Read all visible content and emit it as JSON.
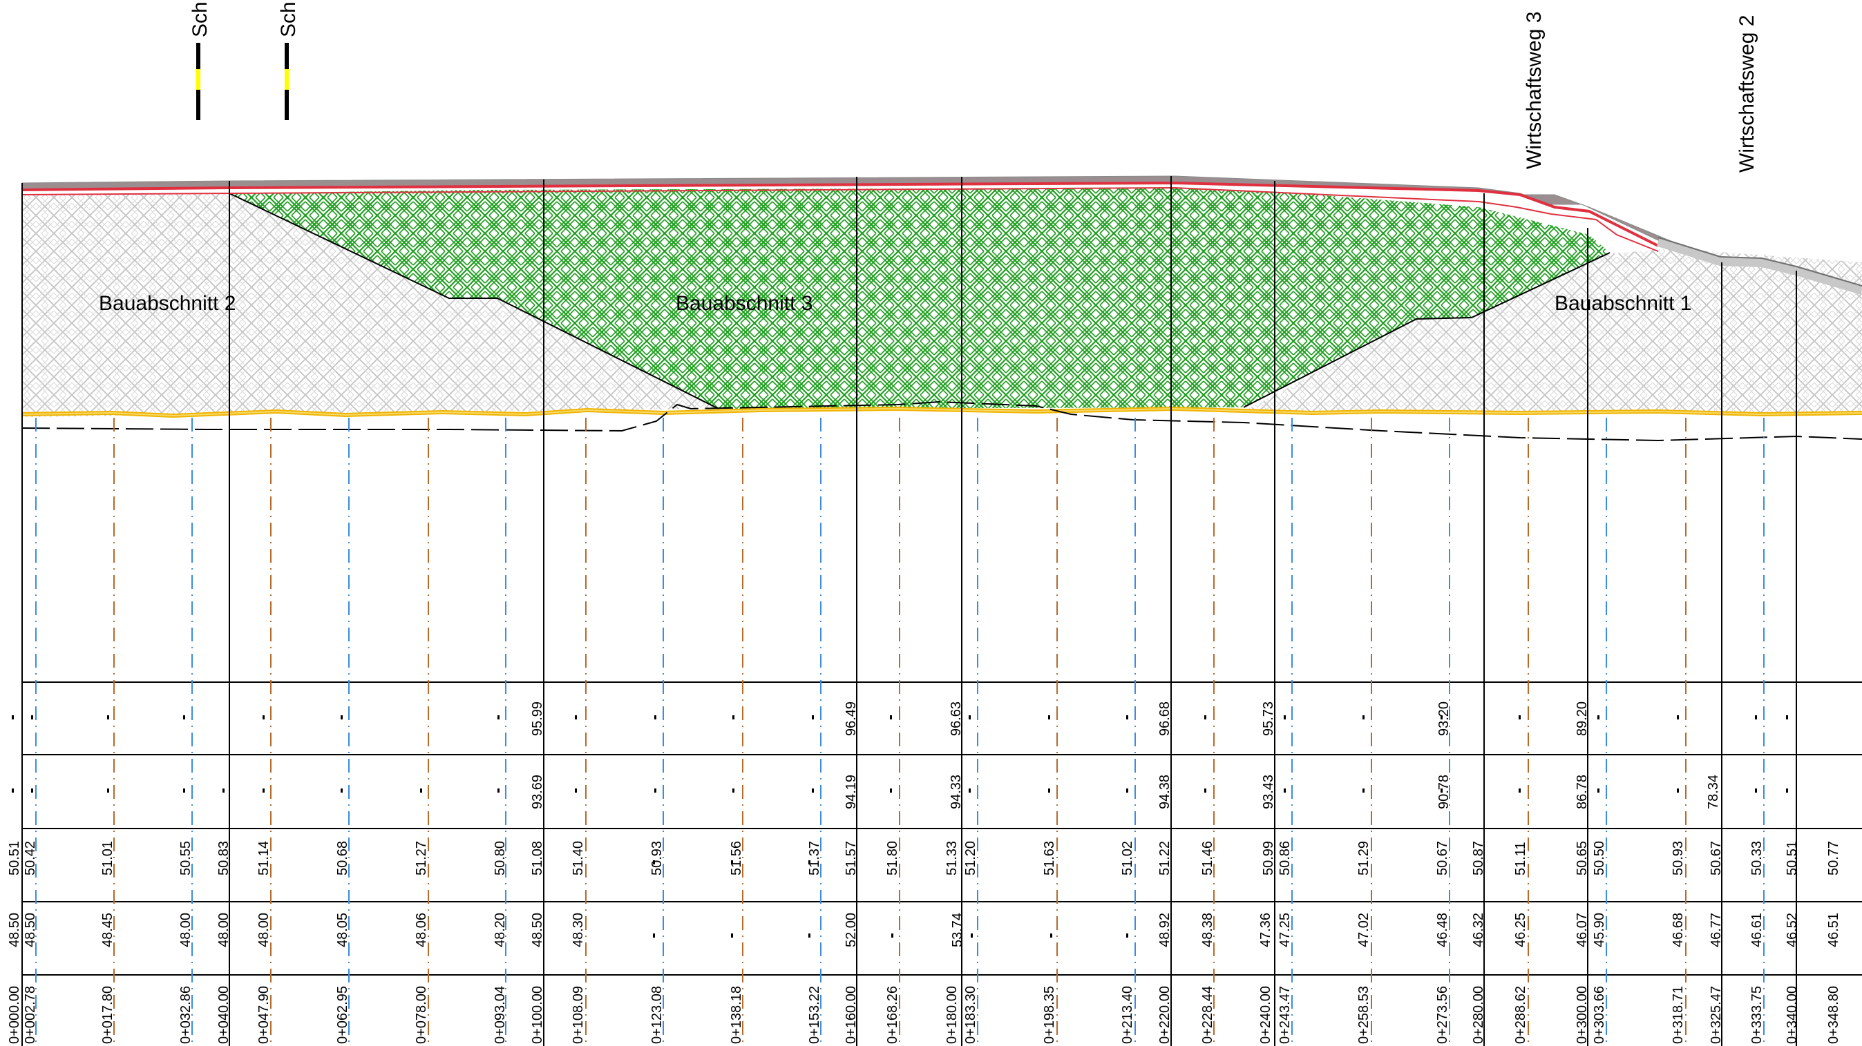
{
  "sections": [
    {
      "label": "Bauabschnitt 2"
    },
    {
      "label": "Bauabschnitt 3"
    },
    {
      "label": "Bauabschnitt 1"
    }
  ],
  "road_labels": [
    {
      "label": "Sch"
    },
    {
      "label": "Sch"
    },
    {
      "label": "Wirtschaftsweg 3"
    },
    {
      "label": "Wirtschaftsweg 2"
    }
  ],
  "band_rows": {
    "row1": [
      {
        "text": "95.99"
      },
      {
        "text": "96.49"
      },
      {
        "text": "96.63"
      },
      {
        "text": "96.68"
      },
      {
        "text": "95.73"
      },
      {
        "text": "93.20"
      },
      {
        "text": "89.20"
      }
    ],
    "row2": [
      {
        "text": "93.69"
      },
      {
        "text": "94.19"
      },
      {
        "text": "94.33"
      },
      {
        "text": "94.38"
      },
      {
        "text": "93.43"
      },
      {
        "text": "90.78"
      },
      {
        "text": "86.78"
      },
      {
        "text": "78.34"
      }
    ],
    "row3": [
      {
        "text": "50.51"
      },
      {
        "text": "50.42"
      },
      {
        "text": "51.01"
      },
      {
        "text": "50.55"
      },
      {
        "text": "50.83"
      },
      {
        "text": "51.14"
      },
      {
        "text": "50.68"
      },
      {
        "text": "51.27"
      },
      {
        "text": "50.80"
      },
      {
        "text": "51.08"
      },
      {
        "text": "51.40"
      },
      {
        "text": "50.93"
      },
      {
        "text": "51.56"
      },
      {
        "text": "51.37"
      },
      {
        "text": "51.57"
      },
      {
        "text": "51.80"
      },
      {
        "text": "51.33"
      },
      {
        "text": "51.20"
      },
      {
        "text": "51.63"
      },
      {
        "text": "51.02"
      },
      {
        "text": "51.22"
      },
      {
        "text": "51.46"
      },
      {
        "text": "50.99"
      },
      {
        "text": "50.86"
      },
      {
        "text": "51.29"
      },
      {
        "text": "50.67"
      },
      {
        "text": "50.87"
      },
      {
        "text": "51.11"
      },
      {
        "text": "50.65"
      },
      {
        "text": "50.50"
      },
      {
        "text": "50.93"
      },
      {
        "text": "50.67"
      },
      {
        "text": "50.33"
      },
      {
        "text": "50.51"
      },
      {
        "text": "50.77"
      }
    ],
    "row4": [
      {
        "text": "48.50"
      },
      {
        "text": "48.50"
      },
      {
        "text": "48.45"
      },
      {
        "text": "48.00"
      },
      {
        "text": "48.00"
      },
      {
        "text": "48.00"
      },
      {
        "text": "48.05"
      },
      {
        "text": "48.06"
      },
      {
        "text": "48.20"
      },
      {
        "text": "48.50"
      },
      {
        "text": "48.30"
      },
      {
        "text": "52.00"
      },
      {
        "text": "53.74"
      },
      {
        "text": "48.92"
      },
      {
        "text": "48.38"
      },
      {
        "text": "47.36"
      },
      {
        "text": "47.25"
      },
      {
        "text": "47.02"
      },
      {
        "text": "46.48"
      },
      {
        "text": "46.32"
      },
      {
        "text": "46.25"
      },
      {
        "text": "46.07"
      },
      {
        "text": "45.90"
      },
      {
        "text": "46.68"
      },
      {
        "text": "46.77"
      },
      {
        "text": "46.61"
      },
      {
        "text": "46.52"
      },
      {
        "text": "46.51"
      }
    ],
    "row5": [
      {
        "text": "0+000.00"
      },
      {
        "text": "0+002.78"
      },
      {
        "text": "0+017.80"
      },
      {
        "text": "0+032.86"
      },
      {
        "text": "0+040.00"
      },
      {
        "text": "0+047.90"
      },
      {
        "text": "0+062.95"
      },
      {
        "text": "0+078.00"
      },
      {
        "text": "0+093.04"
      },
      {
        "text": "0+100.00"
      },
      {
        "text": "0+108.09"
      },
      {
        "text": "0+123.08"
      },
      {
        "text": "0+138.18"
      },
      {
        "text": "0+153.22"
      },
      {
        "text": "0+160.00"
      },
      {
        "text": "0+168.26"
      },
      {
        "text": "0+180.00"
      },
      {
        "text": "0+183.30"
      },
      {
        "text": "0+198.35"
      },
      {
        "text": "0+213.40"
      },
      {
        "text": "0+220.00"
      },
      {
        "text": "0+228.44"
      },
      {
        "text": "0+240.00"
      },
      {
        "text": "0+243.47"
      },
      {
        "text": "0+258.53"
      },
      {
        "text": "0+273.56"
      },
      {
        "text": "0+280.00"
      },
      {
        "text": "0+288.62"
      },
      {
        "text": "0+300.00"
      },
      {
        "text": "0+303.66"
      },
      {
        "text": "0+318.71"
      },
      {
        "text": "0+325.47"
      },
      {
        "text": "0+333.75"
      },
      {
        "text": "0+340.00"
      },
      {
        "text": "0+348.80"
      }
    ]
  },
  "colors": {
    "road_surface": "#e03040",
    "base_layer": "#8a8a8a",
    "fill_green": "#1e9e1e",
    "hatch_grey": "#c8c8c8",
    "subgrade_yellow": "#f0b400",
    "marker_yellow": "#ffff00",
    "centerline_blue": "#3a8de0",
    "centerline_brown": "#b86a28",
    "grid_black": "#000000"
  }
}
